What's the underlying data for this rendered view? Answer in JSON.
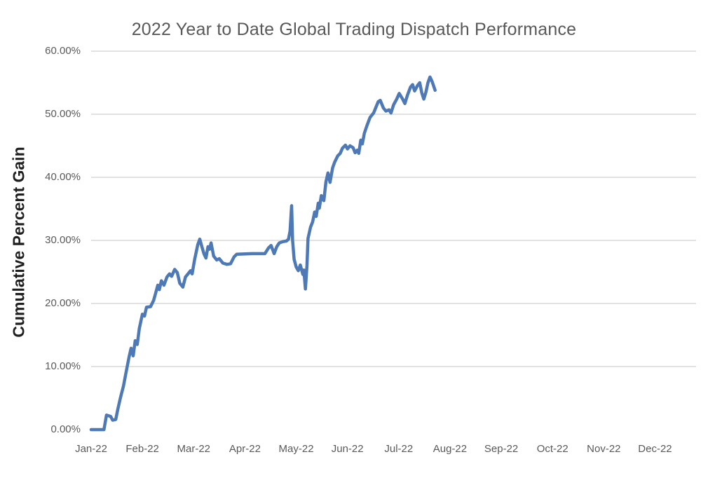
{
  "chart_data": {
    "type": "line",
    "title": "2022 Year to Date Global Trading Dispatch Performance",
    "xlabel": "",
    "ylabel": "Cumulative Percent Gain",
    "legend": "none",
    "grid": "horizontal-only",
    "x_unit": "months since Jan-22 tick (0 = Jan-22, 1 = Feb-22, ...)",
    "xlim": [
      0,
      11.8
    ],
    "ylim": [
      0,
      60
    ],
    "x_tick_positions": [
      0,
      1,
      2,
      3,
      4,
      5,
      6,
      7,
      8,
      9,
      10,
      11
    ],
    "x_tick_labels": [
      "Jan-22",
      "Feb-22",
      "Mar-22",
      "Apr-22",
      "May-22",
      "Jun-22",
      "Jul-22",
      "Aug-22",
      "Sep-22",
      "Oct-22",
      "Nov-22",
      "Dec-22"
    ],
    "y_tick_values": [
      0,
      10,
      20,
      30,
      40,
      50,
      60
    ],
    "y_tick_labels": [
      "0.00%",
      "10.00%",
      "20.00%",
      "30.00%",
      "40.00%",
      "50.00%",
      "60.00%"
    ],
    "y_gridline_values": [
      10,
      20,
      30,
      40,
      50,
      60
    ],
    "colors": {
      "line": "#4d79b6",
      "gridline": "#d9d9d9",
      "title_text": "#595959",
      "tick_text": "#595959",
      "axis_title_text": "#1f1f1f",
      "background": "#ffffff"
    },
    "series": [
      {
        "name": "Cumulative percent gain (%)",
        "points": [
          [
            0.0,
            0.0
          ],
          [
            0.25,
            0.0
          ],
          [
            0.3,
            2.3
          ],
          [
            0.38,
            2.1
          ],
          [
            0.42,
            1.5
          ],
          [
            0.48,
            1.6
          ],
          [
            0.52,
            3.2
          ],
          [
            0.57,
            5.0
          ],
          [
            0.63,
            6.9
          ],
          [
            0.68,
            9.0
          ],
          [
            0.74,
            11.5
          ],
          [
            0.78,
            12.9
          ],
          [
            0.82,
            11.7
          ],
          [
            0.86,
            14.1
          ],
          [
            0.9,
            13.5
          ],
          [
            0.94,
            16.0
          ],
          [
            1.0,
            18.3
          ],
          [
            1.04,
            18.0
          ],
          [
            1.08,
            19.4
          ],
          [
            1.16,
            19.5
          ],
          [
            1.22,
            20.5
          ],
          [
            1.26,
            21.7
          ],
          [
            1.3,
            22.9
          ],
          [
            1.33,
            22.2
          ],
          [
            1.37,
            23.6
          ],
          [
            1.42,
            22.9
          ],
          [
            1.48,
            24.2
          ],
          [
            1.53,
            24.7
          ],
          [
            1.57,
            24.3
          ],
          [
            1.63,
            25.4
          ],
          [
            1.68,
            24.9
          ],
          [
            1.73,
            23.2
          ],
          [
            1.79,
            22.6
          ],
          [
            1.84,
            24.2
          ],
          [
            1.9,
            24.8
          ],
          [
            1.94,
            25.2
          ],
          [
            1.97,
            24.7
          ],
          [
            2.02,
            27.0
          ],
          [
            2.08,
            29.3
          ],
          [
            2.12,
            30.2
          ],
          [
            2.16,
            29.0
          ],
          [
            2.2,
            27.9
          ],
          [
            2.24,
            27.2
          ],
          [
            2.28,
            29.0
          ],
          [
            2.31,
            28.6
          ],
          [
            2.34,
            29.6
          ],
          [
            2.39,
            27.5
          ],
          [
            2.45,
            26.9
          ],
          [
            2.5,
            27.1
          ],
          [
            2.57,
            26.4
          ],
          [
            2.65,
            26.2
          ],
          [
            2.72,
            26.3
          ],
          [
            2.79,
            27.4
          ],
          [
            2.84,
            27.8
          ],
          [
            3.14,
            27.9
          ],
          [
            3.39,
            27.9
          ],
          [
            3.46,
            28.8
          ],
          [
            3.51,
            29.2
          ],
          [
            3.57,
            27.9
          ],
          [
            3.62,
            29.0
          ],
          [
            3.67,
            29.6
          ],
          [
            3.74,
            29.8
          ],
          [
            3.81,
            29.9
          ],
          [
            3.85,
            30.2
          ],
          [
            3.88,
            31.5
          ],
          [
            3.91,
            35.5
          ],
          [
            3.93,
            30.0
          ],
          [
            3.96,
            27.0
          ],
          [
            4.0,
            25.8
          ],
          [
            4.04,
            25.2
          ],
          [
            4.08,
            26.1
          ],
          [
            4.13,
            24.6
          ],
          [
            4.15,
            25.3
          ],
          [
            4.18,
            22.3
          ],
          [
            4.21,
            26.0
          ],
          [
            4.23,
            30.3
          ],
          [
            4.28,
            32.1
          ],
          [
            4.32,
            32.9
          ],
          [
            4.36,
            34.5
          ],
          [
            4.39,
            33.8
          ],
          [
            4.43,
            35.9
          ],
          [
            4.45,
            35.1
          ],
          [
            4.49,
            37.1
          ],
          [
            4.54,
            36.3
          ],
          [
            4.58,
            39.3
          ],
          [
            4.62,
            40.7
          ],
          [
            4.66,
            39.2
          ],
          [
            4.71,
            41.5
          ],
          [
            4.75,
            42.4
          ],
          [
            4.81,
            43.4
          ],
          [
            4.86,
            43.8
          ],
          [
            4.9,
            44.6
          ],
          [
            4.96,
            45.1
          ],
          [
            5.0,
            44.5
          ],
          [
            5.05,
            45.0
          ],
          [
            5.11,
            44.7
          ],
          [
            5.15,
            43.9
          ],
          [
            5.19,
            44.3
          ],
          [
            5.22,
            43.8
          ],
          [
            5.26,
            45.9
          ],
          [
            5.29,
            45.3
          ],
          [
            5.33,
            47.0
          ],
          [
            5.38,
            48.2
          ],
          [
            5.44,
            49.5
          ],
          [
            5.51,
            50.2
          ],
          [
            5.55,
            51.0
          ],
          [
            5.6,
            52.0
          ],
          [
            5.64,
            52.2
          ],
          [
            5.7,
            51.0
          ],
          [
            5.75,
            50.5
          ],
          [
            5.81,
            50.7
          ],
          [
            5.85,
            50.2
          ],
          [
            5.9,
            51.5
          ],
          [
            5.96,
            52.4
          ],
          [
            6.01,
            53.3
          ],
          [
            6.07,
            52.5
          ],
          [
            6.12,
            51.7
          ],
          [
            6.17,
            53.0
          ],
          [
            6.23,
            54.3
          ],
          [
            6.27,
            54.7
          ],
          [
            6.31,
            53.7
          ],
          [
            6.37,
            54.6
          ],
          [
            6.41,
            55.0
          ],
          [
            6.45,
            53.4
          ],
          [
            6.49,
            52.4
          ],
          [
            6.53,
            53.5
          ],
          [
            6.57,
            55.0
          ],
          [
            6.61,
            55.9
          ],
          [
            6.65,
            55.2
          ],
          [
            6.71,
            53.8
          ]
        ]
      }
    ]
  }
}
